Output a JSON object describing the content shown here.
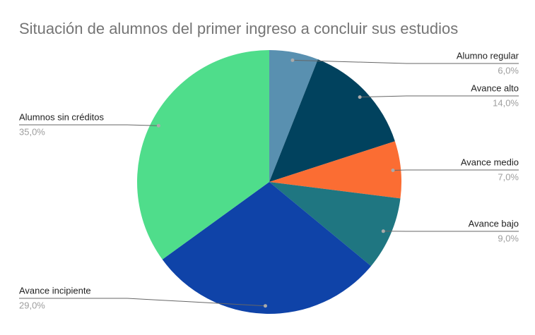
{
  "chart_data": {
    "type": "pie",
    "title": "Situación de alumnos del primer ingreso a concluir sus estudios",
    "categories": [
      "Alumno regular",
      "Avance alto",
      "Avance medio",
      "Avance bajo",
      "Avance incipiente",
      "Alumnos sin créditos"
    ],
    "values": [
      6,
      14,
      7,
      9,
      29,
      35
    ],
    "value_labels": [
      "6,0%",
      "14,0%",
      "7,0%",
      "9,0%",
      "29,0%",
      "35,0%"
    ],
    "colors": [
      "#5990b0",
      "#01425e",
      "#fb6d33",
      "#1f7681",
      "#0f43a8",
      "#4fdd8b"
    ]
  }
}
